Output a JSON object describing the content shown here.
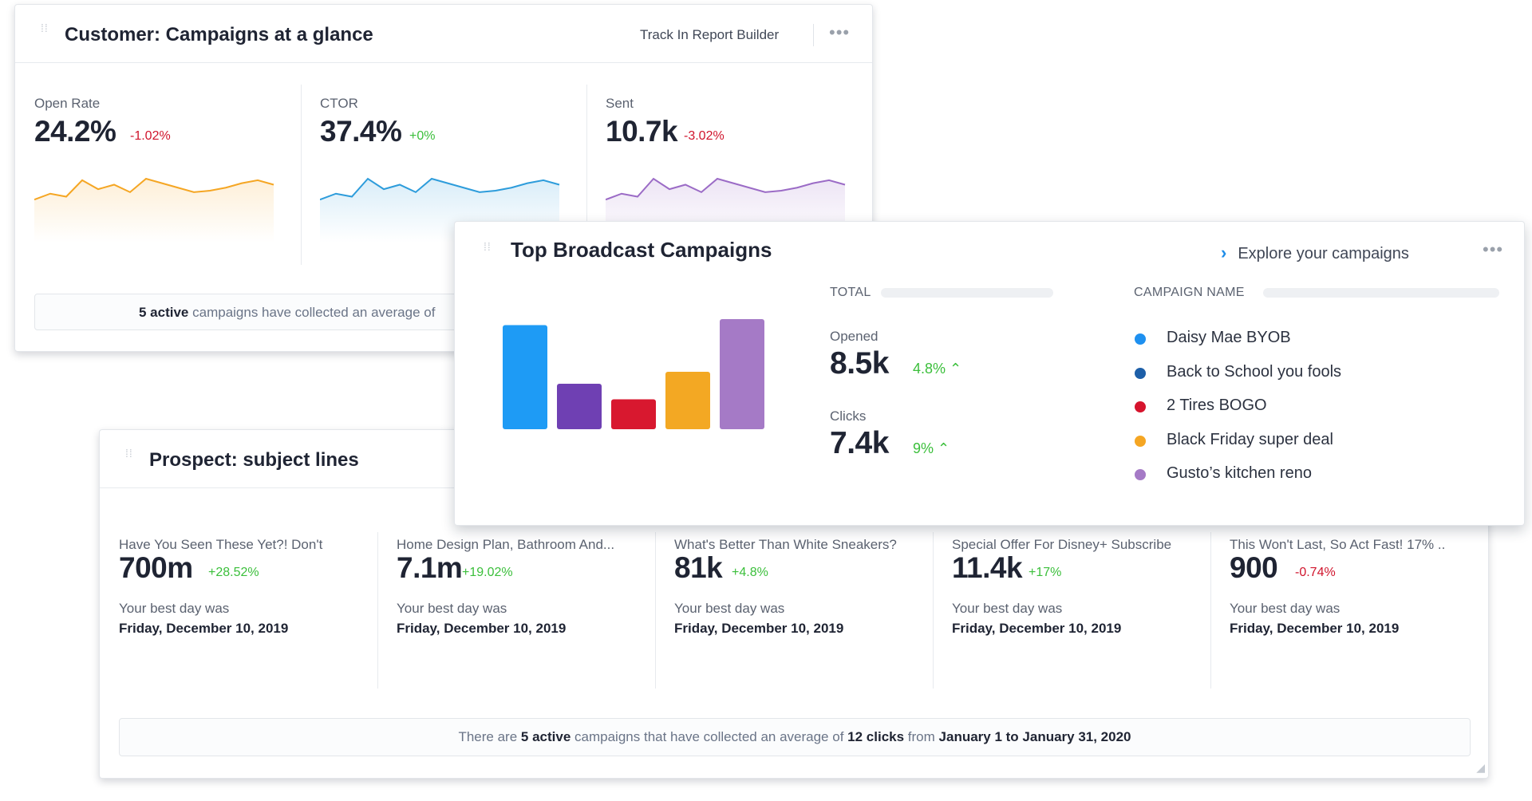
{
  "campaigns_glance": {
    "title": "Customer: Campaigns at a glance",
    "track_link": "Track In Report Builder",
    "metrics": [
      {
        "label": "Open Rate",
        "value": "24.2%",
        "delta": "-1.02%",
        "trend": "negative",
        "color": "#f5a623",
        "spark": [
          4,
          12,
          8,
          30,
          18,
          24,
          14,
          32,
          26,
          20,
          14,
          16,
          20,
          26,
          30,
          24
        ]
      },
      {
        "label": "CTOR",
        "value": "37.4%",
        "delta": "+0%",
        "trend": "positive",
        "color": "#2d9cdb",
        "spark": [
          4,
          12,
          8,
          32,
          18,
          24,
          14,
          32,
          26,
          20,
          14,
          16,
          20,
          26,
          30,
          24
        ]
      },
      {
        "label": "Sent",
        "value": "10.7k",
        "delta": "-3.02%",
        "trend": "negative",
        "color": "#9b6bc6",
        "spark": [
          4,
          12,
          8,
          32,
          18,
          24,
          14,
          32,
          26,
          20,
          14,
          16,
          20,
          26,
          30,
          24
        ]
      }
    ],
    "summary": {
      "count": "5 active",
      "text": "campaigns have collected an average of"
    }
  },
  "top_broadcast": {
    "title": "Top Broadcast Campaigns",
    "explore_label": "Explore your campaigns",
    "total_header": "TOTAL",
    "campaign_header": "CAMPAIGN NAME",
    "opened": {
      "label": "Opened",
      "value": "8.5k",
      "pct": "4.8%"
    },
    "clicks": {
      "label": "Clicks",
      "value": "7.4k",
      "pct": "9%"
    },
    "campaigns": [
      {
        "name": "Daisy Mae BYOB",
        "color": "#1e90f0",
        "bar": 0.87
      },
      {
        "name": "Back to School you fools",
        "color": "#1d5fa8",
        "bar": 0.38
      },
      {
        "name": "2 Tires BOGO",
        "color": "#d6142d",
        "bar": 0.25
      },
      {
        "name": "Black Friday super deal",
        "color": "#f5a623",
        "bar": 0.48
      },
      {
        "name": "Gusto’s kitchen reno",
        "color": "#a57ac6",
        "bar": 0.92
      }
    ],
    "bar_colors": [
      "#1e9bf5",
      "#6f40b3",
      "#d8182f",
      "#f3a823",
      "#a57ac6"
    ]
  },
  "subject_lines": {
    "title": "Prospect: subject lines",
    "items": [
      {
        "label": "Have You Seen These Yet?!   Don't",
        "value": "700m",
        "delta": "+28.52%",
        "trend": "positive",
        "best_label": "Your best day was",
        "best_date": "Friday, December 10, 2019"
      },
      {
        "label": "Home Design Plan, Bathroom And...",
        "value": "7.1m",
        "delta": "+19.02%",
        "trend": "positive",
        "best_label": "Your best day was",
        "best_date": "Friday, December 10, 2019"
      },
      {
        "label": "What's Better Than White Sneakers?",
        "value": "81k",
        "delta": "+4.8%",
        "trend": "positive",
        "best_label": "Your best day was",
        "best_date": "Friday, December 10, 2019"
      },
      {
        "label": "Special Offer For Disney+ Subscribe",
        "value": "11.4k",
        "delta": "+17%",
        "trend": "positive",
        "best_label": "Your best day was",
        "best_date": "Friday, December 10, 2019"
      },
      {
        "label": "This Won't Last, So Act Fast!   17% ..",
        "value": "900",
        "delta": "-0.74%",
        "trend": "negative",
        "best_label": "Your best day was",
        "best_date": "Friday, December 10, 2019"
      }
    ],
    "summary": {
      "prefix": "There are",
      "count": "5 active",
      "mid": "campaigns that have collected an average of",
      "clicks": "12 clicks",
      "from": "from",
      "range": "January 1 to January 31, 2020"
    }
  }
}
